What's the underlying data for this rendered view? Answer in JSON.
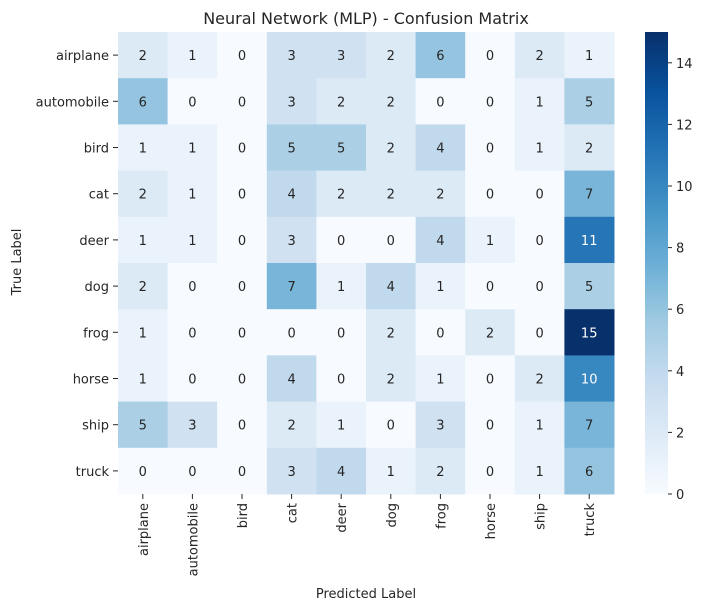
{
  "chart_data": {
    "type": "heatmap",
    "title": "Neural Network (MLP) - Confusion Matrix",
    "xlabel": "Predicted Label",
    "ylabel": "True Label",
    "x_categories": [
      "airplane",
      "automobile",
      "bird",
      "cat",
      "deer",
      "dog",
      "frog",
      "horse",
      "ship",
      "truck"
    ],
    "y_categories": [
      "airplane",
      "automobile",
      "bird",
      "cat",
      "deer",
      "dog",
      "frog",
      "horse",
      "ship",
      "truck"
    ],
    "values": [
      [
        2,
        1,
        0,
        3,
        3,
        2,
        6,
        0,
        2,
        1
      ],
      [
        6,
        0,
        0,
        3,
        2,
        2,
        0,
        0,
        1,
        5
      ],
      [
        1,
        1,
        0,
        5,
        5,
        2,
        4,
        0,
        1,
        2
      ],
      [
        2,
        1,
        0,
        4,
        2,
        2,
        2,
        0,
        0,
        7
      ],
      [
        1,
        1,
        0,
        3,
        0,
        0,
        4,
        1,
        0,
        11
      ],
      [
        2,
        0,
        0,
        7,
        1,
        4,
        1,
        0,
        0,
        5
      ],
      [
        1,
        0,
        0,
        0,
        0,
        2,
        0,
        2,
        0,
        15
      ],
      [
        1,
        0,
        0,
        4,
        0,
        2,
        1,
        0,
        2,
        10
      ],
      [
        5,
        3,
        0,
        2,
        1,
        0,
        3,
        0,
        1,
        7
      ],
      [
        0,
        0,
        0,
        3,
        4,
        1,
        2,
        0,
        1,
        6
      ]
    ],
    "colormap": "Blues",
    "color_range": [
      0,
      15
    ],
    "colorbar_ticks": [
      0,
      2,
      4,
      6,
      8,
      10,
      12,
      14
    ],
    "colorbar_tick_labels": [
      "0",
      "2",
      "4",
      "6",
      "8",
      "10",
      "12",
      "14"
    ]
  }
}
